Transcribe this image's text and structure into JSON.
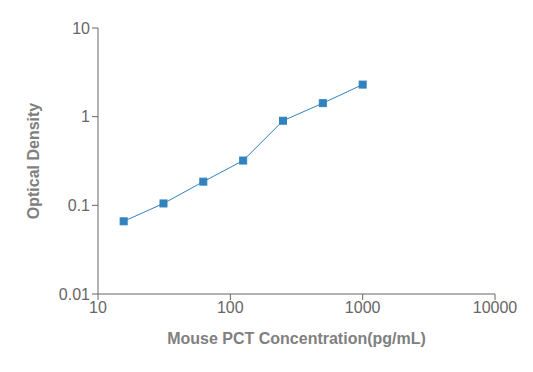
{
  "chart_data": {
    "type": "line",
    "x": [
      15.625,
      31.25,
      62.5,
      125,
      250,
      500,
      1000
    ],
    "values": [
      0.066,
      0.105,
      0.185,
      0.32,
      0.9,
      1.42,
      2.3
    ],
    "xlabel": "Mouse PCT Concentration(pg/mL)",
    "ylabel": "Optical Density",
    "xlim": [
      10,
      10000
    ],
    "ylim": [
      0.01,
      10
    ],
    "xticks": [
      10,
      100,
      1000,
      10000
    ],
    "yticks": [
      0.01,
      0.1,
      1,
      10
    ],
    "log": true,
    "grid": false,
    "marker": "square"
  }
}
